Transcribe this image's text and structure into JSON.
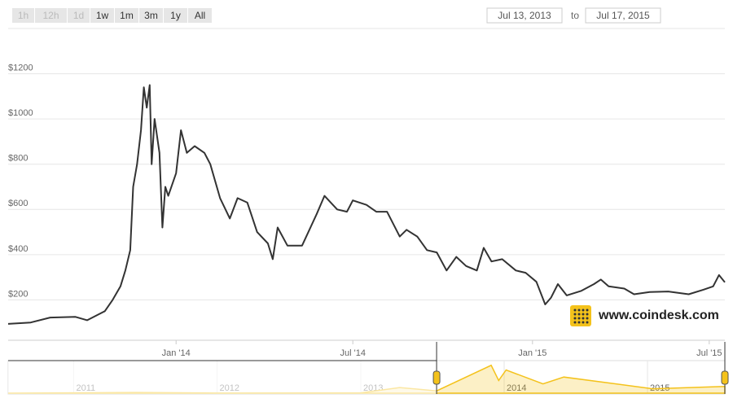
{
  "toolbar": {
    "buttons": [
      "1h",
      "12h",
      "1d",
      "1w",
      "1m",
      "3m",
      "1y",
      "All"
    ],
    "from": "Jul 13, 2013",
    "to_label": "to",
    "to": "Jul 17, 2015"
  },
  "watermark": "www.coindesk.com",
  "chart_data": [
    {
      "type": "line",
      "color": "#333333",
      "grid": true,
      "xlim": [
        "2013-07-13",
        "2015-07-17"
      ],
      "xticks": [
        {
          "value": "2014-01-01",
          "label": "Jan '14"
        },
        {
          "value": "2014-07-01",
          "label": "Jul '14"
        },
        {
          "value": "2015-01-01",
          "label": "Jan '15"
        },
        {
          "value": "2015-07-01",
          "label": "Jul '15"
        }
      ],
      "ylim": [
        0,
        1400
      ],
      "yticks": [
        {
          "value": 200,
          "label": "$200"
        },
        {
          "value": 400,
          "label": "$400"
        },
        {
          "value": 600,
          "label": "$600"
        },
        {
          "value": 800,
          "label": "$800"
        },
        {
          "value": 1000,
          "label": "$1000"
        },
        {
          "value": 1200,
          "label": "$1200"
        }
      ],
      "x": [
        "2013-07-13",
        "2013-08-05",
        "2013-08-25",
        "2013-09-20",
        "2013-10-02",
        "2013-10-20",
        "2013-10-28",
        "2013-11-05",
        "2013-11-10",
        "2013-11-15",
        "2013-11-18",
        "2013-11-22",
        "2013-11-26",
        "2013-11-29",
        "2013-12-02",
        "2013-12-05",
        "2013-12-07",
        "2013-12-10",
        "2013-12-15",
        "2013-12-18",
        "2013-12-21",
        "2013-12-24",
        "2014-01-01",
        "2014-01-06",
        "2014-01-12",
        "2014-01-20",
        "2014-01-30",
        "2014-02-05",
        "2014-02-15",
        "2014-02-25",
        "2014-03-05",
        "2014-03-15",
        "2014-03-25",
        "2014-04-05",
        "2014-04-10",
        "2014-04-15",
        "2014-04-25",
        "2014-05-10",
        "2014-05-25",
        "2014-06-02",
        "2014-06-15",
        "2014-06-25",
        "2014-07-01",
        "2014-07-15",
        "2014-07-25",
        "2014-08-05",
        "2014-08-18",
        "2014-08-25",
        "2014-09-05",
        "2014-09-15",
        "2014-09-25",
        "2014-10-05",
        "2014-10-15",
        "2014-10-25",
        "2014-11-05",
        "2014-11-12",
        "2014-11-20",
        "2014-12-01",
        "2014-12-15",
        "2014-12-25",
        "2015-01-05",
        "2015-01-14",
        "2015-01-20",
        "2015-01-27",
        "2015-02-05",
        "2015-02-20",
        "2015-03-05",
        "2015-03-12",
        "2015-03-20",
        "2015-04-05",
        "2015-04-15",
        "2015-05-01",
        "2015-05-20",
        "2015-06-10",
        "2015-06-25",
        "2015-07-05",
        "2015-07-11",
        "2015-07-17"
      ],
      "values": [
        94,
        100,
        122,
        125,
        110,
        150,
        200,
        260,
        330,
        420,
        700,
        800,
        950,
        1140,
        1050,
        1150,
        800,
        1000,
        850,
        520,
        700,
        660,
        760,
        950,
        850,
        880,
        850,
        800,
        650,
        560,
        650,
        630,
        500,
        450,
        380,
        520,
        440,
        440,
        580,
        660,
        600,
        590,
        640,
        620,
        590,
        590,
        480,
        510,
        480,
        420,
        410,
        330,
        390,
        350,
        330,
        430,
        370,
        380,
        330,
        320,
        280,
        180,
        210,
        270,
        220,
        240,
        270,
        290,
        260,
        250,
        225,
        235,
        237,
        225,
        245,
        260,
        310,
        278
      ]
    },
    {
      "type": "area",
      "color": "#f4c21b",
      "xlim": [
        "2010-07-18",
        "2015-07-17"
      ],
      "xticks": [
        {
          "value": "2011-01-01",
          "label": "2011"
        },
        {
          "value": "2012-01-01",
          "label": "2012"
        },
        {
          "value": "2013-01-01",
          "label": "2013"
        },
        {
          "value": "2014-01-01",
          "label": "2014"
        },
        {
          "value": "2015-01-01",
          "label": "2015"
        }
      ],
      "ylim": [
        0,
        1200
      ],
      "x": [
        "2010-07-18",
        "2011-06-08",
        "2012-01-01",
        "2013-01-01",
        "2013-04-10",
        "2013-07-13",
        "2013-11-29",
        "2013-12-18",
        "2014-01-06",
        "2014-04-10",
        "2014-06-02",
        "2015-01-14",
        "2015-07-17"
      ],
      "values": [
        0,
        30,
        5,
        13,
        230,
        94,
        1140,
        520,
        950,
        380,
        660,
        180,
        278
      ]
    }
  ]
}
